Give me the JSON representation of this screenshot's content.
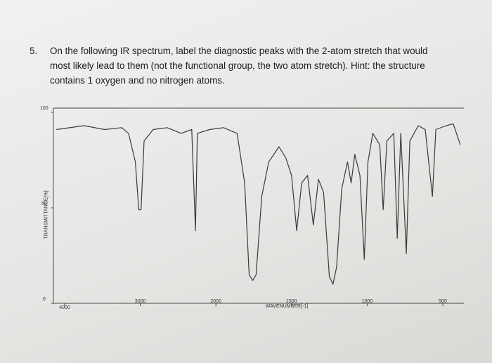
{
  "question": {
    "number": "5.",
    "lines": [
      "On the following IR spectrum, label the diagnostic peaks with the 2-atom stretch that would",
      "most likely lead to them (not the functional group, the two atom stretch). Hint: the structure",
      "contains 1 oxygen and no nitrogen atoms."
    ]
  },
  "chart_data": {
    "type": "line",
    "xlabel": "WAVENUMBER[-1]",
    "ylabel": "TRANSMITTANCE[%]",
    "color": "#3a3a3a",
    "xlim": [
      4150,
      360
    ],
    "ylim": [
      0,
      100
    ],
    "xticks": [
      4000,
      3000,
      2000,
      1500,
      1000,
      500
    ],
    "yticks": [
      0,
      50,
      100
    ],
    "x": [
      4110,
      3745,
      3470,
      3245,
      3155,
      3065,
      3020,
      2990,
      2950,
      2830,
      2645,
      2460,
      2320,
      2270,
      2245,
      2085,
      1950,
      1860,
      1810,
      1780,
      1757,
      1734,
      1697,
      1651,
      1583,
      1537,
      1500,
      1466,
      1433,
      1394,
      1356,
      1322,
      1288,
      1250,
      1226,
      1202,
      1168,
      1130,
      1106,
      1082,
      1048,
      1019,
      995,
      963,
      917,
      894,
      870,
      824,
      801,
      778,
      741,
      718,
      662,
      616,
      569,
      546,
      477,
      431,
      384
    ],
    "values": [
      91,
      93,
      91,
      92,
      89,
      74,
      49,
      49,
      85,
      91,
      92,
      89,
      91,
      38,
      89,
      91,
      92,
      89,
      63,
      15,
      12,
      15,
      56,
      74,
      82,
      76,
      67,
      38,
      63,
      67,
      41,
      65,
      58,
      14,
      10,
      19,
      60,
      74,
      63,
      78,
      67,
      23,
      74,
      89,
      83,
      49,
      85,
      89,
      34,
      89,
      26,
      85,
      93,
      91,
      56,
      91,
      93,
      94,
      83
    ]
  }
}
